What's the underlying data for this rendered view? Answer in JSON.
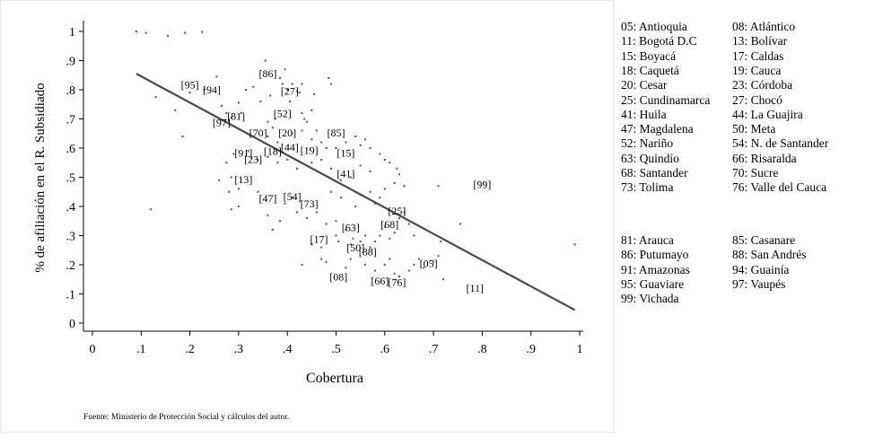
{
  "chart_data": {
    "type": "scatter",
    "title": "",
    "xlabel": "Cobertura",
    "ylabel": "% de afiliación en el R. Subsidiado",
    "xlim": [
      0,
      1
    ],
    "ylim": [
      0,
      1
    ],
    "xticks": [
      "0",
      ".1",
      ".2",
      ".3",
      ".4",
      ".5",
      ".6",
      ".7",
      ".8",
      ".9",
      "1"
    ],
    "yticks": [
      "0",
      ".1",
      ".2",
      ".3",
      ".4",
      ".5",
      ".6",
      ".7",
      ".8",
      ".9",
      "1"
    ],
    "grid": false,
    "source_note": "Fuente: Ministerio de Protección Social y cálculos del autor.",
    "fit_line": {
      "x": [
        0.09,
        0.99
      ],
      "y": [
        0.855,
        0.045
      ]
    },
    "labels": [
      {
        "text": "[86]",
        "x": 0.36,
        "y": 0.855
      },
      {
        "text": "[95]",
        "x": 0.2,
        "y": 0.817
      },
      {
        "text": "[94]",
        "x": 0.245,
        "y": 0.8
      },
      {
        "text": "[27]",
        "x": 0.405,
        "y": 0.795
      },
      {
        "text": "[52]",
        "x": 0.39,
        "y": 0.718
      },
      {
        "text": "[81]",
        "x": 0.295,
        "y": 0.71
      },
      {
        "text": "[97]",
        "x": 0.265,
        "y": 0.688
      },
      {
        "text": "[85]",
        "x": 0.5,
        "y": 0.653
      },
      {
        "text": "[70]",
        "x": 0.34,
        "y": 0.653
      },
      {
        "text": "[20]",
        "x": 0.4,
        "y": 0.653
      },
      {
        "text": "[44]",
        "x": 0.405,
        "y": 0.603
      },
      {
        "text": "[19]",
        "x": 0.445,
        "y": 0.592
      },
      {
        "text": "[18]",
        "x": 0.37,
        "y": 0.59
      },
      {
        "text": "[15]",
        "x": 0.52,
        "y": 0.583
      },
      {
        "text": "[91]",
        "x": 0.31,
        "y": 0.583
      },
      {
        "text": "[23]",
        "x": 0.33,
        "y": 0.562
      },
      {
        "text": "[41]",
        "x": 0.52,
        "y": 0.513
      },
      {
        "text": "[13]",
        "x": 0.31,
        "y": 0.492
      },
      {
        "text": "[99]",
        "x": 0.8,
        "y": 0.475
      },
      {
        "text": "[54]",
        "x": 0.41,
        "y": 0.434
      },
      {
        "text": "[47]",
        "x": 0.36,
        "y": 0.427
      },
      {
        "text": "[73]",
        "x": 0.445,
        "y": 0.41
      },
      {
        "text": "[25]",
        "x": 0.625,
        "y": 0.385
      },
      {
        "text": "[68]",
        "x": 0.61,
        "y": 0.338
      },
      {
        "text": "[63]",
        "x": 0.53,
        "y": 0.328
      },
      {
        "text": "[17]",
        "x": 0.465,
        "y": 0.288
      },
      {
        "text": "[50]",
        "x": 0.54,
        "y": 0.258
      },
      {
        "text": "[88]",
        "x": 0.565,
        "y": 0.245
      },
      {
        "text": "[05]",
        "x": 0.69,
        "y": 0.205
      },
      {
        "text": "[08]",
        "x": 0.505,
        "y": 0.158
      },
      {
        "text": "[66]",
        "x": 0.59,
        "y": 0.145
      },
      {
        "text": "[76]",
        "x": 0.625,
        "y": 0.14
      },
      {
        "text": "[11]",
        "x": 0.785,
        "y": 0.12
      }
    ],
    "points": [
      [
        0.09,
        1.0
      ],
      [
        0.11,
        0.995
      ],
      [
        0.155,
        0.985
      ],
      [
        0.19,
        0.995
      ],
      [
        0.225,
        0.998
      ],
      [
        0.2,
        0.79
      ],
      [
        0.13,
        0.775
      ],
      [
        0.17,
        0.73
      ],
      [
        0.185,
        0.64
      ],
      [
        0.23,
        0.8
      ],
      [
        0.255,
        0.845
      ],
      [
        0.265,
        0.745
      ],
      [
        0.275,
        0.72
      ],
      [
        0.285,
        0.705
      ],
      [
        0.3,
        0.755
      ],
      [
        0.305,
        0.72
      ],
      [
        0.315,
        0.8
      ],
      [
        0.33,
        0.81
      ],
      [
        0.345,
        0.76
      ],
      [
        0.355,
        0.9
      ],
      [
        0.365,
        0.78
      ],
      [
        0.375,
        0.7
      ],
      [
        0.385,
        0.84
      ],
      [
        0.39,
        0.82
      ],
      [
        0.395,
        0.87
      ],
      [
        0.4,
        0.8
      ],
      [
        0.405,
        0.76
      ],
      [
        0.41,
        0.82
      ],
      [
        0.42,
        0.795
      ],
      [
        0.425,
        0.79
      ],
      [
        0.43,
        0.82
      ],
      [
        0.43,
        0.72
      ],
      [
        0.435,
        0.7
      ],
      [
        0.44,
        0.69
      ],
      [
        0.45,
        0.73
      ],
      [
        0.455,
        0.785
      ],
      [
        0.485,
        0.84
      ],
      [
        0.49,
        0.82
      ],
      [
        0.36,
        0.69
      ],
      [
        0.36,
        0.64
      ],
      [
        0.37,
        0.67
      ],
      [
        0.38,
        0.62
      ],
      [
        0.41,
        0.65
      ],
      [
        0.43,
        0.66
      ],
      [
        0.45,
        0.63
      ],
      [
        0.46,
        0.66
      ],
      [
        0.47,
        0.62
      ],
      [
        0.48,
        0.6
      ],
      [
        0.5,
        0.6
      ],
      [
        0.52,
        0.62
      ],
      [
        0.54,
        0.64
      ],
      [
        0.55,
        0.61
      ],
      [
        0.56,
        0.63
      ],
      [
        0.57,
        0.6
      ],
      [
        0.59,
        0.58
      ],
      [
        0.6,
        0.56
      ],
      [
        0.61,
        0.55
      ],
      [
        0.625,
        0.53
      ],
      [
        0.63,
        0.51
      ],
      [
        0.57,
        0.52
      ],
      [
        0.55,
        0.54
      ],
      [
        0.53,
        0.5
      ],
      [
        0.51,
        0.49
      ],
      [
        0.49,
        0.53
      ],
      [
        0.47,
        0.56
      ],
      [
        0.45,
        0.55
      ],
      [
        0.42,
        0.53
      ],
      [
        0.4,
        0.56
      ],
      [
        0.38,
        0.55
      ],
      [
        0.36,
        0.57
      ],
      [
        0.34,
        0.56
      ],
      [
        0.32,
        0.59
      ],
      [
        0.29,
        0.58
      ],
      [
        0.275,
        0.55
      ],
      [
        0.285,
        0.5
      ],
      [
        0.26,
        0.49
      ],
      [
        0.28,
        0.45
      ],
      [
        0.3,
        0.46
      ],
      [
        0.285,
        0.39
      ],
      [
        0.3,
        0.4
      ],
      [
        0.12,
        0.39
      ],
      [
        0.34,
        0.45
      ],
      [
        0.36,
        0.37
      ],
      [
        0.37,
        0.32
      ],
      [
        0.385,
        0.35
      ],
      [
        0.395,
        0.41
      ],
      [
        0.41,
        0.43
      ],
      [
        0.42,
        0.38
      ],
      [
        0.44,
        0.36
      ],
      [
        0.46,
        0.38
      ],
      [
        0.48,
        0.34
      ],
      [
        0.5,
        0.35
      ],
      [
        0.5,
        0.3
      ],
      [
        0.505,
        0.28
      ],
      [
        0.52,
        0.32
      ],
      [
        0.53,
        0.27
      ],
      [
        0.535,
        0.29
      ],
      [
        0.55,
        0.28
      ],
      [
        0.56,
        0.3
      ],
      [
        0.57,
        0.26
      ],
      [
        0.58,
        0.28
      ],
      [
        0.59,
        0.3
      ],
      [
        0.6,
        0.33
      ],
      [
        0.61,
        0.29
      ],
      [
        0.62,
        0.31
      ],
      [
        0.63,
        0.36
      ],
      [
        0.64,
        0.38
      ],
      [
        0.65,
        0.34
      ],
      [
        0.66,
        0.3
      ],
      [
        0.55,
        0.44
      ],
      [
        0.57,
        0.45
      ],
      [
        0.59,
        0.43
      ],
      [
        0.6,
        0.46
      ],
      [
        0.62,
        0.48
      ],
      [
        0.58,
        0.41
      ],
      [
        0.54,
        0.4
      ],
      [
        0.51,
        0.43
      ],
      [
        0.49,
        0.45
      ],
      [
        0.47,
        0.26
      ],
      [
        0.45,
        0.27
      ],
      [
        0.43,
        0.2
      ],
      [
        0.47,
        0.22
      ],
      [
        0.48,
        0.21
      ],
      [
        0.52,
        0.19
      ],
      [
        0.53,
        0.22
      ],
      [
        0.56,
        0.2
      ],
      [
        0.58,
        0.18
      ],
      [
        0.6,
        0.2
      ],
      [
        0.61,
        0.22
      ],
      [
        0.62,
        0.17
      ],
      [
        0.63,
        0.16
      ],
      [
        0.65,
        0.18
      ],
      [
        0.66,
        0.2
      ],
      [
        0.67,
        0.22
      ],
      [
        0.68,
        0.19
      ],
      [
        0.7,
        0.21
      ],
      [
        0.71,
        0.23
      ],
      [
        0.715,
        0.28
      ],
      [
        0.72,
        0.15
      ],
      [
        0.71,
        0.47
      ],
      [
        0.755,
        0.34
      ],
      [
        0.99,
        0.27
      ],
      [
        0.85,
        0.17
      ],
      [
        0.64,
        0.47
      ]
    ],
    "legend": {
      "group1": [
        [
          "05: Antioquia",
          "08: Atlántico"
        ],
        [
          "11: Bogotá D.C",
          "13: Bolívar"
        ],
        [
          "15: Boyacá",
          "17: Caldas"
        ],
        [
          "18: Caquetá",
          "19: Cauca"
        ],
        [
          "20: Cesar",
          "23: Córdoba"
        ],
        [
          "25: Cundinamarca",
          "27: Chocó"
        ],
        [
          "41: Huila",
          "44: La Guajira"
        ],
        [
          "47: Magdalena",
          "50: Meta"
        ],
        [
          "52: Nariño",
          "54: N. de Santander"
        ],
        [
          "63: Quindío",
          "66: Risaralda"
        ],
        [
          "68: Santander",
          "70: Sucre"
        ],
        [
          "73: Tolima",
          "76: Valle del Cauca"
        ]
      ],
      "group2": [
        [
          "81: Arauca",
          "85: Casanare"
        ],
        [
          "86: Putumayo",
          "88: San Andrés"
        ],
        [
          "91: Amazonas",
          "94: Guainía"
        ],
        [
          "95: Guaviare",
          "97: Vaupés"
        ],
        [
          "99: Vichada",
          ""
        ]
      ]
    }
  }
}
